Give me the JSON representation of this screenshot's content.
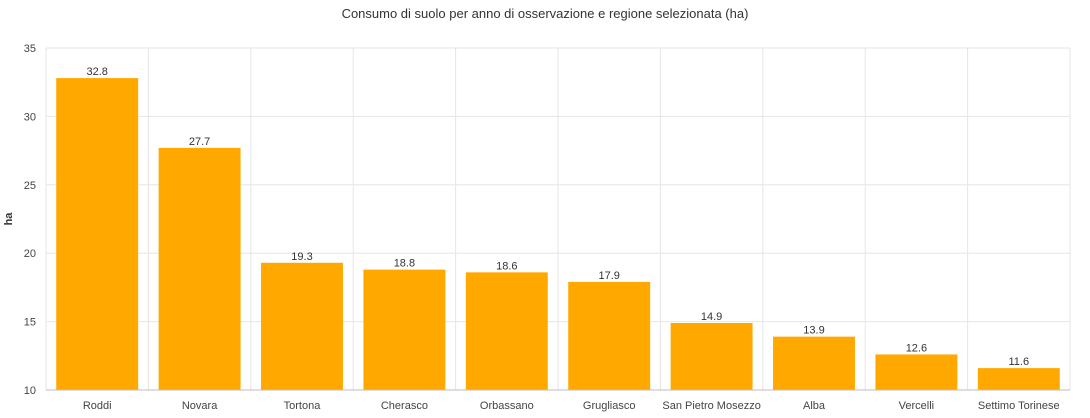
{
  "chart_data": {
    "type": "bar",
    "title": "Consumo di suolo per anno di osservazione e regione selezionata (ha)",
    "xlabel": "",
    "ylabel": "ha",
    "ylim": [
      10,
      35
    ],
    "yticks": [
      10,
      15,
      20,
      25,
      30,
      35
    ],
    "grid": true,
    "categories": [
      "Roddi",
      "Novara",
      "Tortona",
      "Cherasco",
      "Orbassano",
      "Grugliasco",
      "San Pietro Mosezzo",
      "Alba",
      "Vercelli",
      "Settimo Torinese"
    ],
    "values": [
      32.8,
      27.7,
      19.3,
      18.8,
      18.6,
      17.9,
      14.9,
      13.9,
      12.6,
      11.6
    ],
    "data_labels": [
      "32.8",
      "27.7",
      "19.3",
      "18.8",
      "18.6",
      "17.9",
      "14.9",
      "13.9",
      "12.6",
      "11.6"
    ],
    "bar_color": "#FFA800"
  }
}
